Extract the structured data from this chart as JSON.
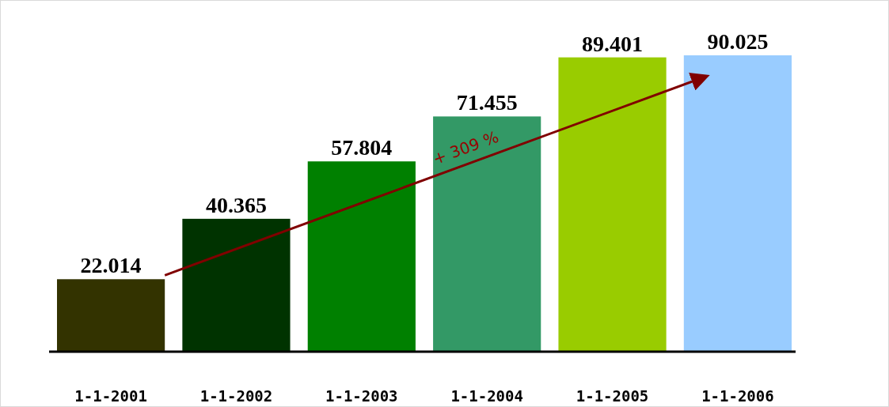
{
  "chart_data": {
    "type": "bar",
    "categories": [
      "1-1-2001",
      "1-1-2002",
      "1-1-2003",
      "1-1-2004",
      "1-1-2005",
      "1-1-2006"
    ],
    "values": [
      22.014,
      40.365,
      57.804,
      71.455,
      89.401,
      90.025
    ],
    "colors": [
      "#333300",
      "#003300",
      "#008000",
      "#339966",
      "#99cc00",
      "#99ccff"
    ],
    "tick_labels": "x",
    "data_labels": true,
    "annotations": [
      "+ 309 %"
    ]
  }
}
